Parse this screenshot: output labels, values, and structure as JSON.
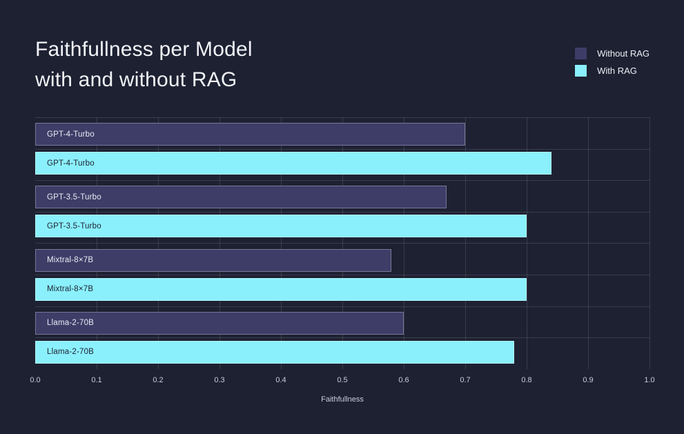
{
  "page": {
    "background": "#1e2132"
  },
  "title": {
    "line1": "Faithfullness per Model",
    "line2": "with and without RAG"
  },
  "legend": {
    "items": [
      {
        "label": "Without RAG",
        "color": "#3e3d68"
      },
      {
        "label": "With RAG",
        "color": "#8af0fc"
      }
    ]
  },
  "chart_data": {
    "type": "bar",
    "orientation": "horizontal",
    "title": "Faithfullness per Model with and without RAG",
    "xlabel": "Faithfullness",
    "xlim": [
      0.0,
      1.0
    ],
    "xticks": [
      "0.0",
      "0.1",
      "0.2",
      "0.3",
      "0.4",
      "0.5",
      "0.6",
      "0.7",
      "0.8",
      "0.9",
      "1.0"
    ],
    "grid": true,
    "legend_position": "top-right",
    "categories": [
      "GPT-4-Turbo",
      "GPT-3.5-Turbo",
      "Mixtral-8×7B",
      "Llama-2-70B"
    ],
    "series": [
      {
        "name": "Without RAG",
        "color": "#3e3d68",
        "label_color": "#e9ebf3",
        "values": [
          0.7,
          0.67,
          0.58,
          0.6
        ]
      },
      {
        "name": "With RAG",
        "color": "#8af0fc",
        "label_color": "#1e2132",
        "values": [
          0.84,
          0.8,
          0.8,
          0.78
        ]
      }
    ]
  },
  "colors": {
    "background": "#1e2132",
    "grid": "rgba(255,255,255,0.12)",
    "tick_label": "#c9cdd9",
    "title_text": "#f2f3f7"
  }
}
